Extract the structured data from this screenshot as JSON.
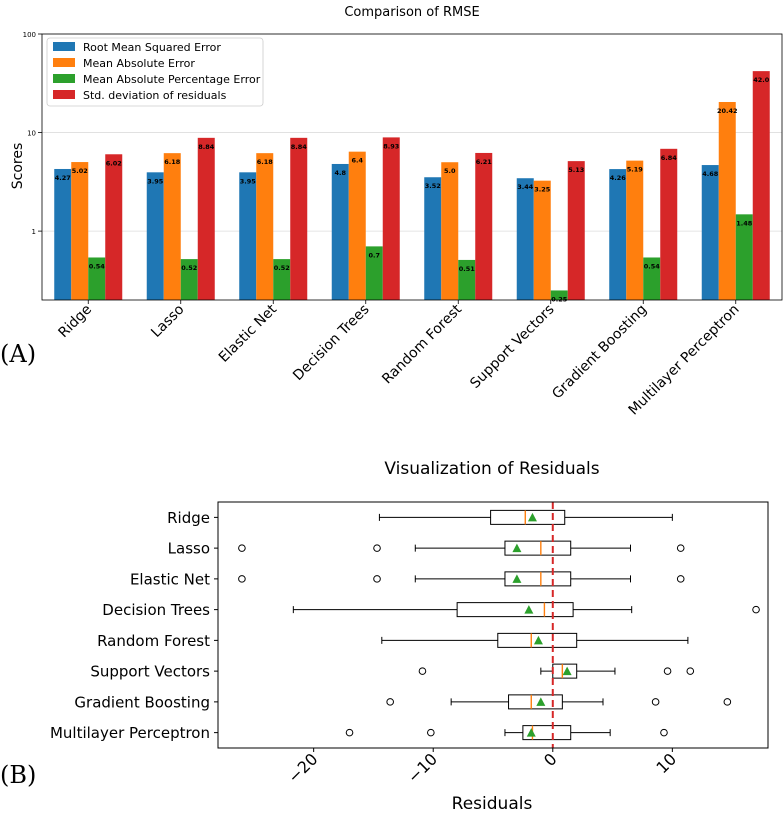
{
  "panels": {
    "a": "(A)",
    "b": "(B)"
  },
  "chart_data": [
    {
      "type": "bar",
      "title": "Comparison of RMSE",
      "xlabel": "",
      "ylabel": "Scores",
      "yscale": "log",
      "ylim": [
        0.2,
        100
      ],
      "yticks": [
        1,
        10,
        100
      ],
      "ytick_labels": [
        "1",
        "10",
        "100"
      ],
      "legend_position": "top-left",
      "categories": [
        "Ridge",
        "Lasso",
        "Elastic Net",
        "Decision Trees",
        "Random Forest",
        "Support Vectors",
        "Gradient Boosting",
        "Multilayer Perceptron"
      ],
      "series": [
        {
          "name": "Root Mean Squared Error",
          "color": "#1f77b4",
          "values": [
            4.27,
            3.95,
            3.95,
            4.8,
            3.52,
            3.44,
            4.26,
            4.68
          ],
          "labels": [
            "4.27",
            "3.95",
            "3.95",
            "4.8",
            "3.52",
            "3.44",
            "4.26",
            "4.68"
          ]
        },
        {
          "name": "Mean Absolute Error",
          "color": "#ff7f0e",
          "values": [
            5.02,
            6.18,
            6.18,
            6.4,
            5.0,
            3.25,
            5.19,
            20.42
          ],
          "labels": [
            "5.02",
            "6.18",
            "6.18",
            "6.4",
            "5.0",
            "3.25",
            "5.19",
            "20.42"
          ]
        },
        {
          "name": "Mean Absolute Percentage Error",
          "color": "#2ca02c",
          "values": [
            0.54,
            0.52,
            0.52,
            0.7,
            0.51,
            0.25,
            0.54,
            1.48
          ],
          "labels": [
            "0.54",
            "0.52",
            "0.52",
            "0.7",
            "0.51",
            "0.25",
            "0.54",
            "1.48"
          ]
        },
        {
          "name": "Std. deviation of residuals",
          "color": "#d62728",
          "values": [
            6.02,
            8.84,
            8.84,
            8.93,
            6.21,
            5.13,
            6.84,
            42.0
          ],
          "labels": [
            "6.02",
            "8.84",
            "8.84",
            "8.93",
            "6.21",
            "5.13",
            "6.84",
            "42.0"
          ]
        }
      ]
    },
    {
      "type": "box",
      "orientation": "horizontal",
      "title": "Visualization of Residuals",
      "xlabel": "Residuals",
      "ylabel": "",
      "xlim": [
        -28,
        18
      ],
      "xticks": [
        -20,
        -10,
        0,
        10
      ],
      "xtick_labels": [
        "−20",
        "−10",
        "0",
        "10"
      ],
      "reference_line": {
        "x": 0,
        "style": "dashed",
        "color": "#d62728"
      },
      "median_color": "#ff7f0e",
      "mean_color": "#2ca02c",
      "categories": [
        "Ridge",
        "Lasso",
        "Elastic Net",
        "Decision Trees",
        "Random Forest",
        "Support Vectors",
        "Gradient Boosting",
        "Multilayer Perceptron"
      ],
      "boxes": [
        {
          "whisker_low": -14.5,
          "q1": -5.2,
          "median": -2.3,
          "q3": 1.0,
          "whisker_high": 10.0,
          "mean": -1.7,
          "outliers": []
        },
        {
          "whisker_low": -11.5,
          "q1": -4.0,
          "median": -1.0,
          "q3": 1.5,
          "whisker_high": 6.5,
          "mean": -3.0,
          "outliers": [
            -26.0,
            -14.7,
            10.7
          ]
        },
        {
          "whisker_low": -11.5,
          "q1": -4.0,
          "median": -1.0,
          "q3": 1.5,
          "whisker_high": 6.5,
          "mean": -3.0,
          "outliers": [
            -26.0,
            -14.7,
            10.7
          ]
        },
        {
          "whisker_low": -21.7,
          "q1": -8.0,
          "median": -0.7,
          "q3": 1.7,
          "whisker_high": 6.6,
          "mean": -2.0,
          "outliers": [
            17.0
          ]
        },
        {
          "whisker_low": -14.3,
          "q1": -4.6,
          "median": -1.8,
          "q3": 2.0,
          "whisker_high": 11.3,
          "mean": -1.2,
          "outliers": []
        },
        {
          "whisker_low": -1.0,
          "q1": 0.0,
          "median": 0.8,
          "q3": 2.0,
          "whisker_high": 5.2,
          "mean": 1.2,
          "outliers": [
            -10.9,
            9.6,
            11.5
          ]
        },
        {
          "whisker_low": -8.5,
          "q1": -3.7,
          "median": -1.8,
          "q3": 0.8,
          "whisker_high": 4.2,
          "mean": -1.0,
          "outliers": [
            -13.6,
            8.6,
            14.6
          ]
        },
        {
          "whisker_low": -4.0,
          "q1": -2.5,
          "median": -1.7,
          "q3": 1.5,
          "whisker_high": 4.8,
          "mean": -1.8,
          "outliers": [
            -17.0,
            -10.2,
            9.3
          ]
        }
      ]
    }
  ]
}
